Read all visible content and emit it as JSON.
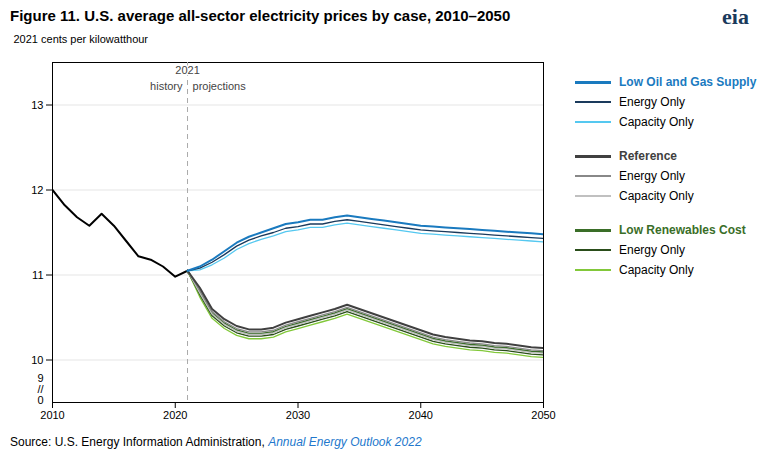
{
  "chart_data": {
    "type": "line",
    "title": "Figure 11. U.S. average all-sector electricity prices by case, 2010–2050",
    "ylabel": "2021 cents per kilowatthour",
    "xlim": [
      2010,
      2050
    ],
    "xticks": [
      2010,
      2020,
      2030,
      2040,
      2050
    ],
    "ylim": [
      9.5,
      13.5
    ],
    "yticks": [
      10,
      11,
      12,
      13
    ],
    "grid": true,
    "legend": "right",
    "legend_groups": [
      "Low Oil and Gas Supply",
      "Reference",
      "Low Renewables Cost"
    ],
    "vline": {
      "x": 2021,
      "label": "2021",
      "left_label": "history",
      "right_label": "projections",
      "color": "#aaaaaa",
      "line_style": "dashed"
    },
    "axis_break_labels": [
      "9",
      "//",
      "0"
    ],
    "source_text": "Source: U.S. Energy Information Administration, ",
    "source_link": "Annual Energy Outlook 2022",
    "logo": "eia",
    "series": [
      {
        "color": "#000000",
        "x": [
          2010,
          2011,
          2012,
          2013,
          2014,
          2015,
          2016,
          2017,
          2018,
          2019,
          2020,
          2021
        ],
        "values": [
          12.0,
          11.82,
          11.68,
          11.58,
          11.72,
          11.58,
          11.4,
          11.22,
          11.18,
          11.1,
          10.98,
          11.05
        ]
      },
      {
        "name": "Capacity Only",
        "group": "Low Renewables Cost",
        "color": "#82c83a",
        "x": [
          2021,
          2022,
          2023,
          2024,
          2025,
          2026,
          2027,
          2028,
          2029,
          2030,
          2031,
          2032,
          2033,
          2034,
          2035,
          2036,
          2037,
          2038,
          2039,
          2040,
          2041,
          2042,
          2043,
          2044,
          2045,
          2046,
          2047,
          2048,
          2049,
          2050
        ],
        "values": [
          11.05,
          10.74,
          10.49,
          10.37,
          10.29,
          10.25,
          10.25,
          10.27,
          10.33,
          10.37,
          10.41,
          10.45,
          10.49,
          10.54,
          10.49,
          10.44,
          10.39,
          10.34,
          10.29,
          10.24,
          10.19,
          10.16,
          10.14,
          10.12,
          10.11,
          10.09,
          10.08,
          10.06,
          10.04,
          10.03
        ]
      },
      {
        "name": "Energy Only",
        "group": "Low Renewables Cost",
        "color": "#2a4d1a",
        "x": [
          2021,
          2022,
          2023,
          2024,
          2025,
          2026,
          2027,
          2028,
          2029,
          2030,
          2031,
          2032,
          2033,
          2034,
          2035,
          2036,
          2037,
          2038,
          2039,
          2040,
          2041,
          2042,
          2043,
          2044,
          2045,
          2046,
          2047,
          2048,
          2049,
          2050
        ],
        "values": [
          11.05,
          10.77,
          10.52,
          10.4,
          10.32,
          10.28,
          10.28,
          10.3,
          10.36,
          10.4,
          10.44,
          10.48,
          10.52,
          10.57,
          10.52,
          10.47,
          10.42,
          10.37,
          10.32,
          10.27,
          10.22,
          10.19,
          10.17,
          10.15,
          10.14,
          10.12,
          10.11,
          10.09,
          10.07,
          10.06
        ]
      },
      {
        "name": "Low Renewables Cost",
        "group": "Low Renewables Cost",
        "color": "#3a6e28",
        "x": [
          2021,
          2022,
          2023,
          2024,
          2025,
          2026,
          2027,
          2028,
          2029,
          2030,
          2031,
          2032,
          2033,
          2034,
          2035,
          2036,
          2037,
          2038,
          2039,
          2040,
          2041,
          2042,
          2043,
          2044,
          2045,
          2046,
          2047,
          2048,
          2049,
          2050
        ],
        "values": [
          11.05,
          10.8,
          10.55,
          10.43,
          10.35,
          10.31,
          10.31,
          10.33,
          10.39,
          10.43,
          10.47,
          10.51,
          10.55,
          10.6,
          10.55,
          10.5,
          10.45,
          10.4,
          10.35,
          10.3,
          10.25,
          10.22,
          10.2,
          10.18,
          10.17,
          10.15,
          10.14,
          10.12,
          10.1,
          10.09
        ]
      },
      {
        "name": "Capacity Only",
        "group": "Reference",
        "color": "#c0c0c0",
        "x": [
          2021,
          2022,
          2023,
          2024,
          2025,
          2026,
          2027,
          2028,
          2029,
          2030,
          2031,
          2032,
          2033,
          2034,
          2035,
          2036,
          2037,
          2038,
          2039,
          2040,
          2041,
          2042,
          2043,
          2044,
          2045,
          2046,
          2047,
          2048,
          2049,
          2050
        ],
        "values": [
          11.05,
          10.79,
          10.54,
          10.42,
          10.34,
          10.3,
          10.3,
          10.32,
          10.38,
          10.42,
          10.46,
          10.5,
          10.54,
          10.59,
          10.54,
          10.49,
          10.44,
          10.39,
          10.34,
          10.29,
          10.24,
          10.21,
          10.19,
          10.17,
          10.16,
          10.14,
          10.13,
          10.11,
          10.09,
          10.08
        ]
      },
      {
        "name": "Energy Only",
        "group": "Reference",
        "color": "#888888",
        "x": [
          2021,
          2022,
          2023,
          2024,
          2025,
          2026,
          2027,
          2028,
          2029,
          2030,
          2031,
          2032,
          2033,
          2034,
          2035,
          2036,
          2037,
          2038,
          2039,
          2040,
          2041,
          2042,
          2043,
          2044,
          2045,
          2046,
          2047,
          2048,
          2049,
          2050
        ],
        "values": [
          11.05,
          10.82,
          10.57,
          10.45,
          10.37,
          10.33,
          10.33,
          10.35,
          10.41,
          10.45,
          10.49,
          10.53,
          10.57,
          10.62,
          10.57,
          10.52,
          10.47,
          10.42,
          10.37,
          10.32,
          10.27,
          10.24,
          10.22,
          10.2,
          10.19,
          10.17,
          10.16,
          10.14,
          10.12,
          10.11
        ]
      },
      {
        "name": "Reference",
        "group": "Reference",
        "color": "#404040",
        "x": [
          2021,
          2022,
          2023,
          2024,
          2025,
          2026,
          2027,
          2028,
          2029,
          2030,
          2031,
          2032,
          2033,
          2034,
          2035,
          2036,
          2037,
          2038,
          2039,
          2040,
          2041,
          2042,
          2043,
          2044,
          2045,
          2046,
          2047,
          2048,
          2049,
          2050
        ],
        "values": [
          11.05,
          10.85,
          10.6,
          10.48,
          10.4,
          10.36,
          10.36,
          10.38,
          10.44,
          10.48,
          10.52,
          10.56,
          10.6,
          10.65,
          10.6,
          10.55,
          10.5,
          10.45,
          10.4,
          10.35,
          10.3,
          10.27,
          10.25,
          10.23,
          10.22,
          10.2,
          10.19,
          10.17,
          10.15,
          10.14
        ]
      },
      {
        "name": "Capacity Only",
        "group": "Low Oil and Gas Supply",
        "color": "#55c8f0",
        "x": [
          2021,
          2022,
          2023,
          2024,
          2025,
          2026,
          2027,
          2028,
          2029,
          2030,
          2031,
          2032,
          2033,
          2034,
          2035,
          2036,
          2037,
          2038,
          2039,
          2040,
          2041,
          2042,
          2043,
          2044,
          2045,
          2046,
          2047,
          2048,
          2049,
          2050
        ],
        "values": [
          11.05,
          11.06,
          11.12,
          11.2,
          11.3,
          11.37,
          11.42,
          11.46,
          11.51,
          11.53,
          11.56,
          11.56,
          11.59,
          11.61,
          11.59,
          11.57,
          11.55,
          11.53,
          11.51,
          11.49,
          11.48,
          11.47,
          11.46,
          11.45,
          11.44,
          11.43,
          11.42,
          11.41,
          11.4,
          11.39
        ]
      },
      {
        "name": "Energy Only",
        "group": "Low Oil and Gas Supply",
        "color": "#1a3a5c",
        "x": [
          2021,
          2022,
          2023,
          2024,
          2025,
          2026,
          2027,
          2028,
          2029,
          2030,
          2031,
          2032,
          2033,
          2034,
          2035,
          2036,
          2037,
          2038,
          2039,
          2040,
          2041,
          2042,
          2043,
          2044,
          2045,
          2046,
          2047,
          2048,
          2049,
          2050
        ],
        "values": [
          11.05,
          11.08,
          11.15,
          11.24,
          11.34,
          11.41,
          11.46,
          11.5,
          11.55,
          11.57,
          11.6,
          11.6,
          11.63,
          11.65,
          11.63,
          11.61,
          11.59,
          11.57,
          11.55,
          11.53,
          11.52,
          11.51,
          11.5,
          11.49,
          11.48,
          11.47,
          11.46,
          11.45,
          11.44,
          11.43
        ]
      },
      {
        "name": "Low Oil and Gas Supply",
        "group": "Low Oil and Gas Supply",
        "color": "#1a7abf",
        "x": [
          2021,
          2022,
          2023,
          2024,
          2025,
          2026,
          2027,
          2028,
          2029,
          2030,
          2031,
          2032,
          2033,
          2034,
          2035,
          2036,
          2037,
          2038,
          2039,
          2040,
          2041,
          2042,
          2043,
          2044,
          2045,
          2046,
          2047,
          2048,
          2049,
          2050
        ],
        "values": [
          11.05,
          11.1,
          11.18,
          11.28,
          11.38,
          11.45,
          11.5,
          11.55,
          11.6,
          11.62,
          11.65,
          11.65,
          11.68,
          11.7,
          11.68,
          11.66,
          11.64,
          11.62,
          11.6,
          11.58,
          11.57,
          11.56,
          11.55,
          11.54,
          11.53,
          11.52,
          11.51,
          11.5,
          11.49,
          11.48
        ]
      }
    ]
  }
}
